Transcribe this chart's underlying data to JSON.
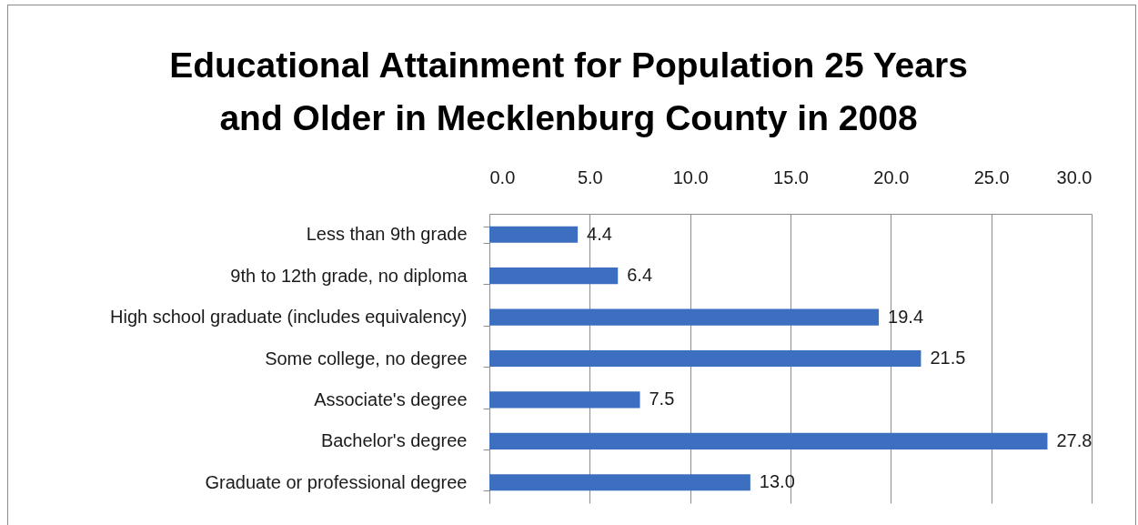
{
  "chart_data": {
    "type": "bar",
    "orientation": "horizontal",
    "title": "Educational Attainment for Population 25 Years\nand Older in Mecklenburg County in 2008",
    "categories": [
      "Less than 9th grade",
      "9th to 12th grade, no diploma",
      "High school graduate (includes equivalency)",
      "Some college, no degree",
      "Associate's degree",
      "Bachelor's degree",
      "Graduate or professional degree"
    ],
    "values": [
      4.4,
      6.4,
      19.4,
      21.5,
      7.5,
      27.8,
      13.0
    ],
    "value_labels": [
      "4.4",
      "6.4",
      "19.4",
      "21.5",
      "7.5",
      "27.8",
      "13.0"
    ],
    "color": "#3c6fbf",
    "xlim": [
      0,
      30
    ],
    "xticks": [
      {
        "value": 0,
        "label": "0.0"
      },
      {
        "value": 5,
        "label": "5.0"
      },
      {
        "value": 10,
        "label": "10.0"
      },
      {
        "value": 15,
        "label": "15.0"
      },
      {
        "value": 20,
        "label": "20.0"
      },
      {
        "value": 25,
        "label": "25.0"
      },
      {
        "value": 30,
        "label": "30.0"
      }
    ],
    "grid": "x"
  }
}
